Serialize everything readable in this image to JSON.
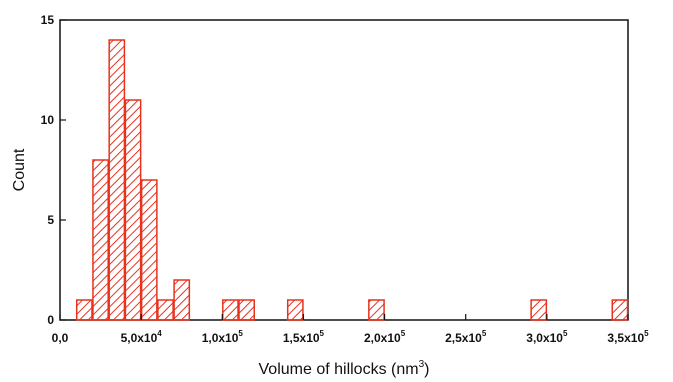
{
  "chart_data": {
    "type": "bar",
    "title": "",
    "xlabel": {
      "text": "Volume of hillocks (nm",
      "superscript": "3",
      "suffix": ")"
    },
    "ylabel": "Count",
    "xlim": [
      0,
      350000
    ],
    "ylim": [
      0,
      15
    ],
    "bin_width": 10000,
    "bar_color": "#e8321e",
    "hatch": "diagonal",
    "grid": false,
    "legend": "none",
    "x_ticks": [
      {
        "value": 0,
        "mantissa": "0,0",
        "exp": ""
      },
      {
        "value": 50000,
        "mantissa": "5,0x10",
        "exp": "4"
      },
      {
        "value": 100000,
        "mantissa": "1,0x10",
        "exp": "5"
      },
      {
        "value": 150000,
        "mantissa": "1,5x10",
        "exp": "5"
      },
      {
        "value": 200000,
        "mantissa": "2,0x10",
        "exp": "5"
      },
      {
        "value": 250000,
        "mantissa": "2,5x10",
        "exp": "5"
      },
      {
        "value": 300000,
        "mantissa": "3,0x10",
        "exp": "5"
      },
      {
        "value": 350000,
        "mantissa": "3,5x10",
        "exp": "5"
      }
    ],
    "y_ticks": [
      {
        "value": 0,
        "label": "0"
      },
      {
        "value": 5,
        "label": "5"
      },
      {
        "value": 10,
        "label": "10"
      },
      {
        "value": 15,
        "label": "15"
      }
    ],
    "bins": [
      {
        "x0": 10000,
        "x1": 20000,
        "count": 1
      },
      {
        "x0": 20000,
        "x1": 30000,
        "count": 8
      },
      {
        "x0": 30000,
        "x1": 40000,
        "count": 14
      },
      {
        "x0": 40000,
        "x1": 50000,
        "count": 11
      },
      {
        "x0": 50000,
        "x1": 60000,
        "count": 7
      },
      {
        "x0": 60000,
        "x1": 70000,
        "count": 1
      },
      {
        "x0": 70000,
        "x1": 80000,
        "count": 2
      },
      {
        "x0": 100000,
        "x1": 110000,
        "count": 1
      },
      {
        "x0": 110000,
        "x1": 120000,
        "count": 1
      },
      {
        "x0": 140000,
        "x1": 150000,
        "count": 1
      },
      {
        "x0": 190000,
        "x1": 200000,
        "count": 1
      },
      {
        "x0": 290000,
        "x1": 300000,
        "count": 1
      },
      {
        "x0": 340000,
        "x1": 350000,
        "count": 1
      }
    ]
  }
}
